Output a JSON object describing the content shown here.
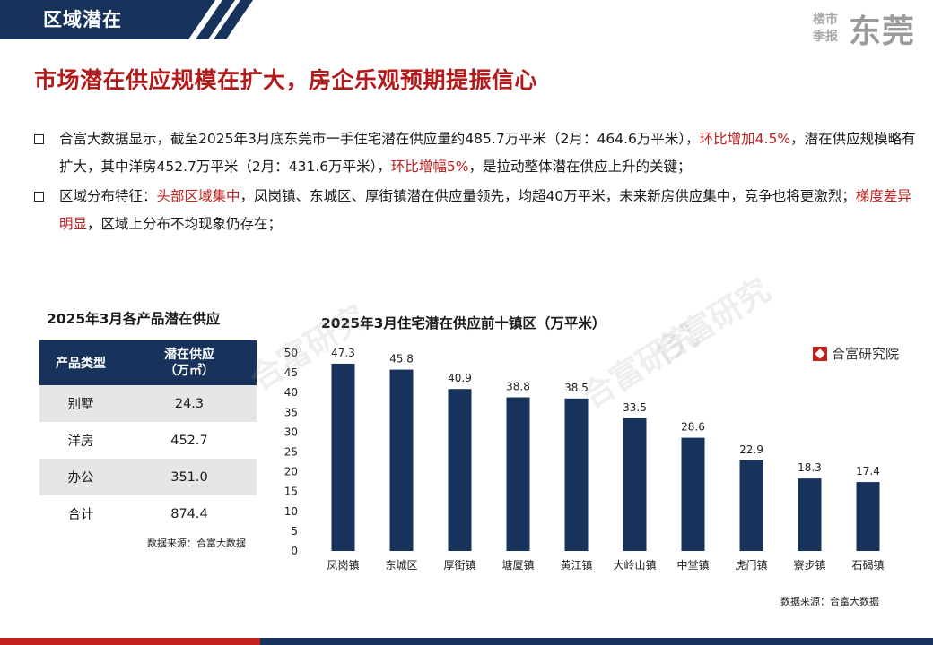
{
  "header": {
    "section_title": "区域潜在",
    "brand_small": "楼市季报",
    "brand_big": "东莞"
  },
  "headline": "市场潜在供应规模在扩大，房企乐观预期提振信心",
  "bullets": [
    {
      "parts": [
        {
          "text": "合富大数据显示，截至2025年3月底东莞市一手住宅潜在供应量约485.7万平米（2月：464.6万平米），",
          "highlight": false
        },
        {
          "text": "环比增加4.5%",
          "highlight": true
        },
        {
          "text": "，潜在供应规模略有扩大，其中洋房452.7万平米（2月：431.6万平米），",
          "highlight": false
        },
        {
          "text": "环比增幅5%",
          "highlight": true
        },
        {
          "text": "，是拉动整体潜在供应上升的关键；",
          "highlight": false
        }
      ]
    },
    {
      "parts": [
        {
          "text": "区域分布特征：",
          "highlight": false
        },
        {
          "text": "头部区域集中",
          "highlight": true
        },
        {
          "text": "，凤岗镇、东城区、厚街镇潜在供应量领先，均超40万平米，未来新房供应集中，竞争也将更激烈；",
          "highlight": false
        },
        {
          "text": "梯度差异明显",
          "highlight": true
        },
        {
          "text": "，区域上分布不均现象仍存在；",
          "highlight": false
        }
      ]
    }
  ],
  "table": {
    "title": "2025年3月各产品潜在供应",
    "headers": [
      "产品类型",
      "潜在供应",
      "（万㎡）"
    ],
    "rows": [
      {
        "type": "别墅",
        "value": "24.3"
      },
      {
        "type": "洋房",
        "value": "452.7"
      },
      {
        "type": "办公",
        "value": "351.0"
      },
      {
        "type": "合计",
        "value": "874.4"
      }
    ],
    "source": "数据来源：合富大数据"
  },
  "chart_meta": {
    "logo_text": "合富研究院",
    "source": "数据来源：合富大数据",
    "watermark": "合富研究"
  },
  "colors": {
    "navy": "#17325b",
    "red": "#c0201e",
    "bar": "#17325b"
  },
  "chart_data": {
    "type": "bar",
    "title": "2025年3月住宅潜在供应前十镇区（万平米）",
    "categories": [
      "凤岗镇",
      "东城区",
      "厚街镇",
      "塘厦镇",
      "黄江镇",
      "大岭山镇",
      "中堂镇",
      "虎门镇",
      "寮步镇",
      "石碣镇"
    ],
    "values": [
      47.3,
      45.8,
      40.9,
      38.8,
      38.5,
      33.5,
      28.6,
      22.9,
      18.3,
      17.4
    ],
    "data_labels": [
      "47.3",
      "45.8",
      "40.9",
      "38.8",
      "38.5",
      "33.5",
      "28.6",
      "22.9",
      "18.3",
      "17.4"
    ],
    "ylim": [
      0,
      50
    ],
    "yticks": [
      0,
      5,
      10,
      15,
      20,
      25,
      30,
      35,
      40,
      45,
      50
    ],
    "grid": false,
    "legend": "none"
  }
}
